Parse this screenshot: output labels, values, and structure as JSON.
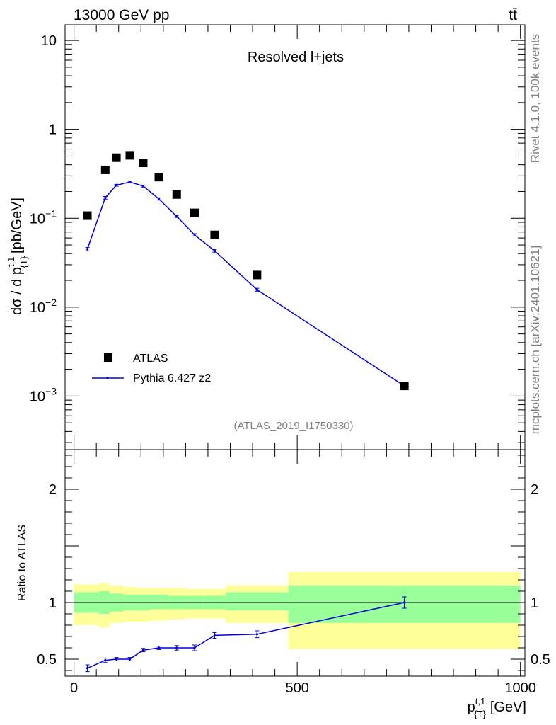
{
  "header": {
    "energy_label": "13000 GeV pp",
    "process_label": "tt̄"
  },
  "side_labels": {
    "rivet": "Rivet 4.1.0,  100k events",
    "mcplots": "mcplots.cern.ch [arXiv:2401.10621]"
  },
  "colors": {
    "mc_line": "#0000dd",
    "band_inner": "#99ff99",
    "band_outer": "#ffff99",
    "data_marker": "#000000",
    "frame": "#000000",
    "grey_text": "#808080"
  },
  "chart_data": [
    {
      "type": "scatter",
      "title": "Resolved l+jets",
      "analysis_id": "(ATLAS_2019_I1750330)",
      "ylabel_main": "dσ / d p",
      "ylabel_sup": "t,1",
      "ylabel_sub": "{T}",
      "ylabel_unit": "[pb/GeV]",
      "yscale": "log",
      "ylim": [
        0.00025,
        15
      ],
      "xlim": [
        -20,
        1010
      ],
      "ytick_labels": [
        {
          "value": 10,
          "text": "10"
        },
        {
          "value": 1,
          "text": "1"
        },
        {
          "value": 0.1,
          "base": "10",
          "exp": "−1"
        },
        {
          "value": 0.01,
          "base": "10",
          "exp": "−2"
        },
        {
          "value": 0.001,
          "base": "10",
          "exp": "−3"
        }
      ],
      "legend": [
        {
          "label": "ATLAS",
          "style": "marker"
        },
        {
          "label": "Pythia 6.427 z2",
          "style": "line"
        }
      ],
      "legend_position": "bottom-left",
      "series": [
        {
          "name": "ATLAS",
          "x": [
            30,
            70,
            95,
            125,
            155,
            190,
            230,
            270,
            315,
            410,
            740
          ],
          "y": [
            0.107,
            0.35,
            0.48,
            0.51,
            0.42,
            0.29,
            0.185,
            0.115,
            0.065,
            0.023,
            0.0013
          ]
        },
        {
          "name": "Pythia 6.427 z2",
          "x": [
            30,
            70,
            95,
            125,
            155,
            190,
            230,
            270,
            315,
            410,
            740
          ],
          "y": [
            0.045,
            0.17,
            0.235,
            0.255,
            0.23,
            0.165,
            0.105,
            0.065,
            0.043,
            0.0157,
            0.0013
          ],
          "yerr": [
            0.002,
            0.006,
            0.006,
            0.006,
            0.006,
            0.005,
            0.003,
            0.002,
            0.0015,
            0.0006,
            7e-05
          ]
        }
      ]
    },
    {
      "type": "line",
      "ylabel": "Ratio to ATLAS",
      "xlabel_main": "p",
      "xlabel_sup": "t,1",
      "xlabel_sub": "{T}",
      "xlabel_unit": "[GeV]",
      "xlim": [
        -20,
        1010
      ],
      "ylim": [
        0.35,
        2.35
      ],
      "xtick_labels": [
        {
          "value": 0,
          "text": "0"
        },
        {
          "value": 500,
          "text": "500"
        },
        {
          "value": 1000,
          "text": "1000"
        }
      ],
      "ytick_labels": [
        {
          "value": 0.5,
          "text": "0.5"
        },
        {
          "value": 1,
          "text": "1"
        },
        {
          "value": 2,
          "text": "2"
        }
      ],
      "bands": [
        {
          "x0": 0,
          "x1": 55,
          "inner": [
            0.91,
            1.09
          ],
          "outer": [
            0.8,
            1.16
          ]
        },
        {
          "x0": 55,
          "x1": 80,
          "inner": [
            0.9,
            1.1
          ],
          "outer": [
            0.78,
            1.17
          ]
        },
        {
          "x0": 80,
          "x1": 110,
          "inner": [
            0.92,
            1.08
          ],
          "outer": [
            0.82,
            1.15
          ]
        },
        {
          "x0": 110,
          "x1": 140,
          "inner": [
            0.93,
            1.07
          ],
          "outer": [
            0.83,
            1.14
          ]
        },
        {
          "x0": 140,
          "x1": 170,
          "inner": [
            0.93,
            1.07
          ],
          "outer": [
            0.83,
            1.13
          ]
        },
        {
          "x0": 170,
          "x1": 210,
          "inner": [
            0.94,
            1.07
          ],
          "outer": [
            0.84,
            1.13
          ]
        },
        {
          "x0": 210,
          "x1": 250,
          "inner": [
            0.94,
            1.06
          ],
          "outer": [
            0.85,
            1.13
          ]
        },
        {
          "x0": 250,
          "x1": 290,
          "inner": [
            0.94,
            1.06
          ],
          "outer": [
            0.86,
            1.12
          ]
        },
        {
          "x0": 290,
          "x1": 340,
          "inner": [
            0.94,
            1.06
          ],
          "outer": [
            0.86,
            1.12
          ]
        },
        {
          "x0": 340,
          "x1": 480,
          "inner": [
            0.93,
            1.09
          ],
          "outer": [
            0.82,
            1.15
          ]
        },
        {
          "x0": 480,
          "x1": 1000,
          "inner": [
            0.82,
            1.15
          ],
          "outer": [
            0.59,
            1.27
          ]
        }
      ],
      "series": [
        {
          "name": "Pythia 6.427 z2 / ATLAS",
          "x": [
            30,
            70,
            95,
            125,
            155,
            190,
            230,
            270,
            315,
            410,
            740
          ],
          "y": [
            0.42,
            0.49,
            0.5,
            0.5,
            0.58,
            0.6,
            0.6,
            0.6,
            0.71,
            0.72,
            1.0
          ],
          "yerr": [
            0.03,
            0.02,
            0.015,
            0.015,
            0.015,
            0.015,
            0.02,
            0.025,
            0.025,
            0.03,
            0.05
          ]
        }
      ]
    }
  ]
}
